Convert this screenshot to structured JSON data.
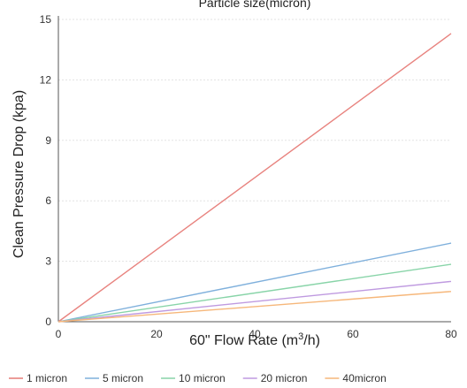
{
  "chart_data": {
    "type": "line",
    "title": "Particle size(micron)",
    "xlabel": "60\" Flow Rate (m",
    "xlabel_sup": "3",
    "xlabel_end": "/h)",
    "ylabel": "Clean Pressure Drop (kpa)",
    "xlim": [
      0,
      80
    ],
    "ylim": [
      0,
      15
    ],
    "xticks": [
      0,
      20,
      40,
      60,
      80
    ],
    "yticks": [
      0,
      3,
      6,
      9,
      12,
      15
    ],
    "grid": true,
    "legend_position": "bottom",
    "series": [
      {
        "name": "1 micron",
        "color": "#e8837f",
        "x": [
          0,
          80
        ],
        "y": [
          0,
          14.3
        ]
      },
      {
        "name": "5 micron",
        "color": "#7fb0dc",
        "x": [
          0,
          80
        ],
        "y": [
          0,
          3.9
        ]
      },
      {
        "name": "10 micron",
        "color": "#88d4a8",
        "x": [
          0,
          80
        ],
        "y": [
          0,
          2.85
        ]
      },
      {
        "name": "20 micron",
        "color": "#bf9ae0",
        "x": [
          0,
          80
        ],
        "y": [
          0,
          2.0
        ]
      },
      {
        "name": "40micron",
        "color": "#f6b77a",
        "x": [
          0,
          80
        ],
        "y": [
          0,
          1.5
        ]
      }
    ]
  }
}
